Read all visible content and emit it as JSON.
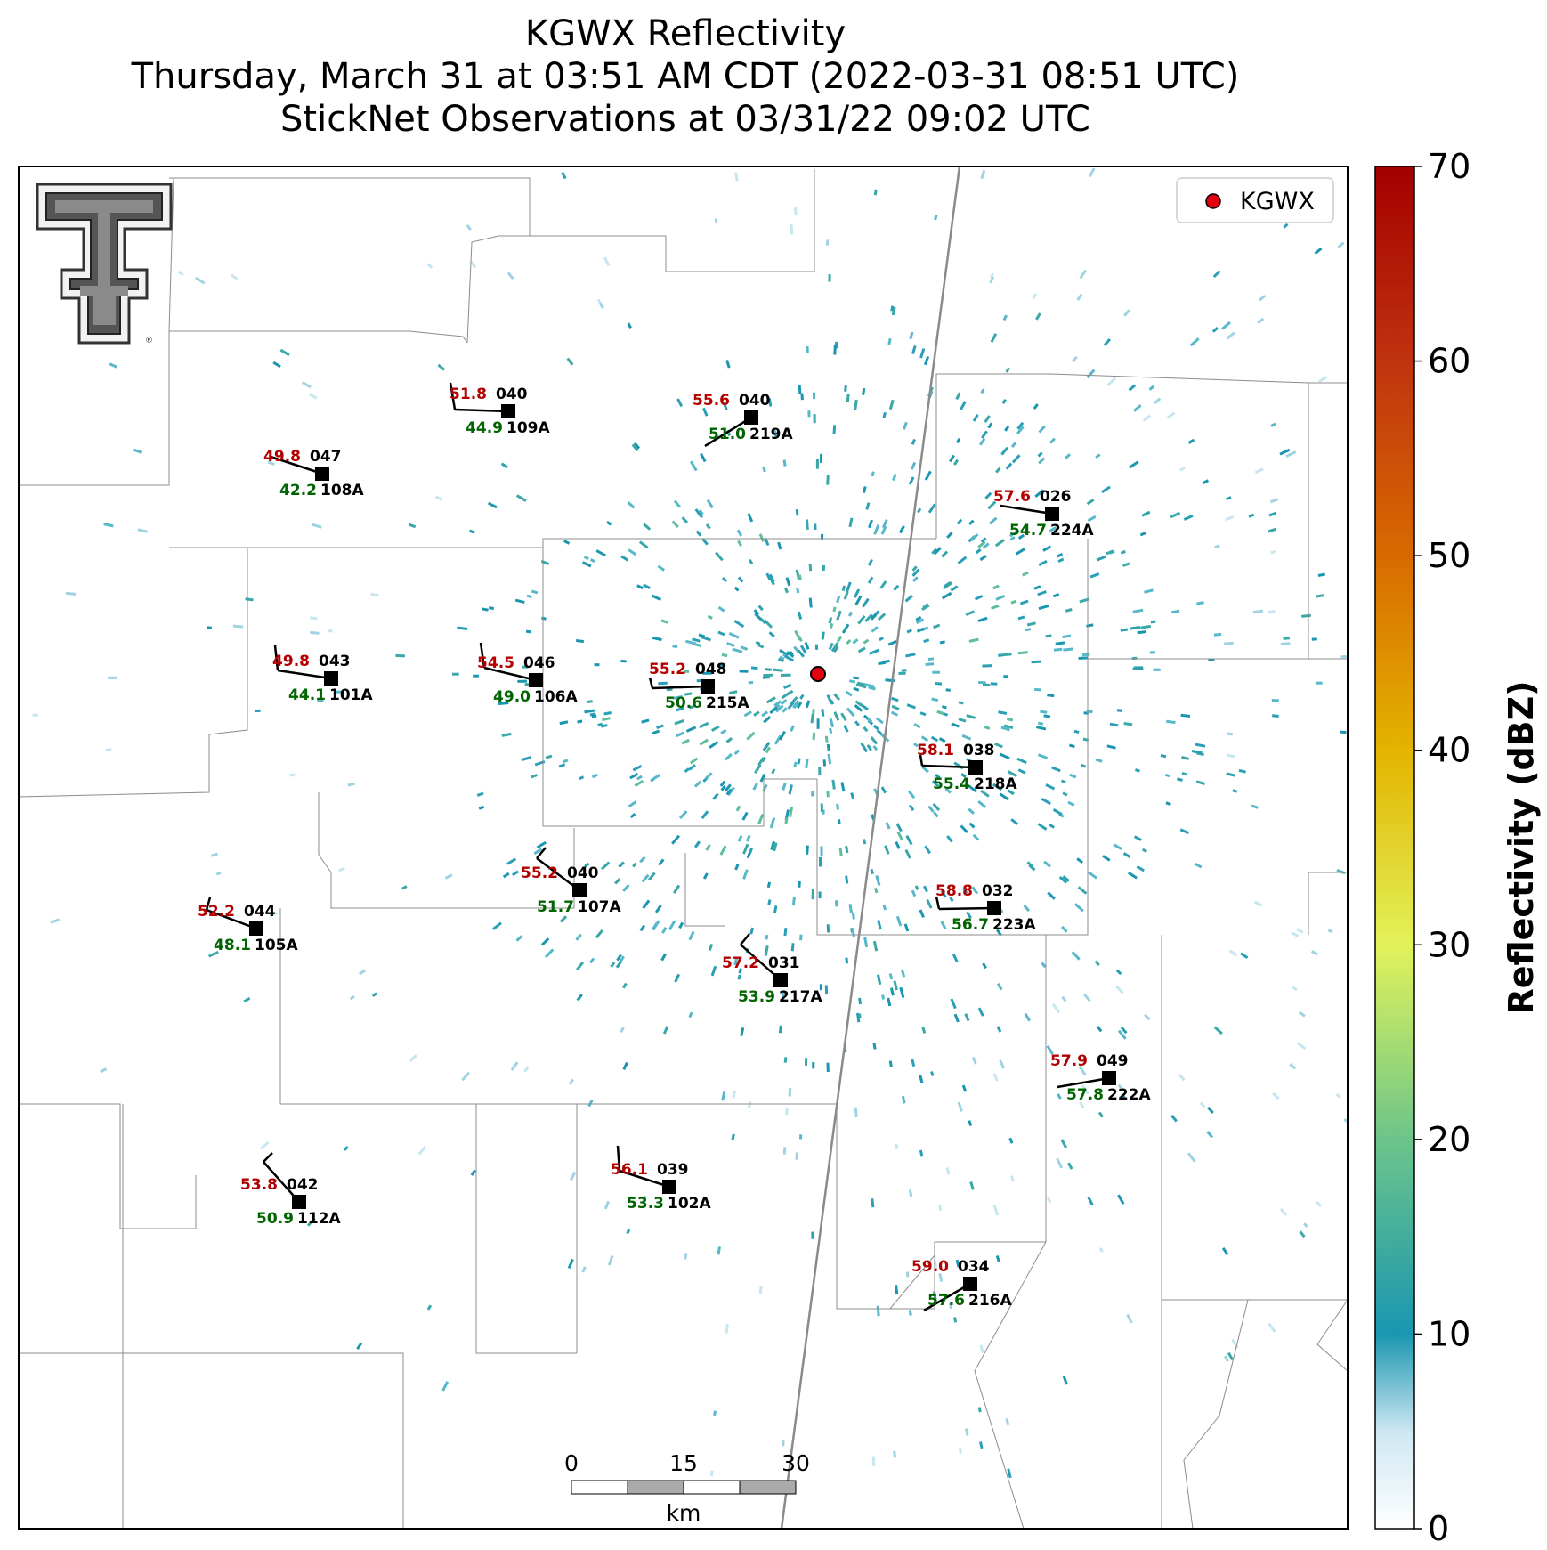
{
  "title": {
    "line1": "KGWX Reflectivity",
    "line2": "Thursday, March 31 at 03:51 AM CDT (2022-03-31 08:51 UTC)",
    "line3": "StickNet Observations at 03/31/22 09:02 UTC"
  },
  "legend": {
    "label": "KGWX",
    "marker_color": "#e3000f"
  },
  "colorbar": {
    "label": "Reflectivity (dBZ)",
    "ticks": [
      "0",
      "10",
      "20",
      "30",
      "40",
      "50",
      "60",
      "70"
    ],
    "colors": [
      "#ffffff",
      "#1a96b0",
      "#6cc58a",
      "#e2f25a",
      "#e3b400",
      "#d86a00",
      "#c0330f",
      "#a30000"
    ]
  },
  "scale_bar": {
    "labels": [
      "0",
      "15",
      "30"
    ],
    "unit": "km"
  },
  "logo": {
    "name": "texas-tech-double-t-logo"
  },
  "colors": {
    "temperature": "#b30000",
    "dewpoint": "#006400",
    "station_id": "#000000"
  },
  "stations": [
    {
      "temp": "51.8",
      "dew": "44.9",
      "pressure": "040",
      "id": "109A"
    },
    {
      "temp": "55.6",
      "dew": "51.0",
      "pressure": "040",
      "id": "219A"
    },
    {
      "temp": "49.8",
      "dew": "42.2",
      "pressure": "047",
      "id": "108A"
    },
    {
      "temp": "57.6",
      "dew": "54.7",
      "pressure": "026",
      "id": "224A"
    },
    {
      "temp": "49.8",
      "dew": "44.1",
      "pressure": "043",
      "id": "101A"
    },
    {
      "temp": "54.5",
      "dew": "49.0",
      "pressure": "046",
      "id": "106A"
    },
    {
      "temp": "55.2",
      "dew": "50.6",
      "pressure": "048",
      "id": "215A"
    },
    {
      "temp": "58.1",
      "dew": "55.4",
      "pressure": "038",
      "id": "218A"
    },
    {
      "temp": "55.2",
      "dew": "51.7",
      "pressure": "040",
      "id": "107A"
    },
    {
      "temp": "52.2",
      "dew": "48.1",
      "pressure": "044",
      "id": "105A"
    },
    {
      "temp": "58.8",
      "dew": "56.7",
      "pressure": "032",
      "id": "223A"
    },
    {
      "temp": "57.2",
      "dew": "53.9",
      "pressure": "031",
      "id": "217A"
    },
    {
      "temp": "57.9",
      "dew": "57.8",
      "pressure": "049",
      "id": "222A"
    },
    {
      "temp": "56.1",
      "dew": "53.3",
      "pressure": "039",
      "id": "102A"
    },
    {
      "temp": "53.8",
      "dew": "50.9",
      "pressure": "042",
      "id": "112A"
    },
    {
      "temp": "59.0",
      "dew": "57.6",
      "pressure": "034",
      "id": "216A"
    }
  ]
}
